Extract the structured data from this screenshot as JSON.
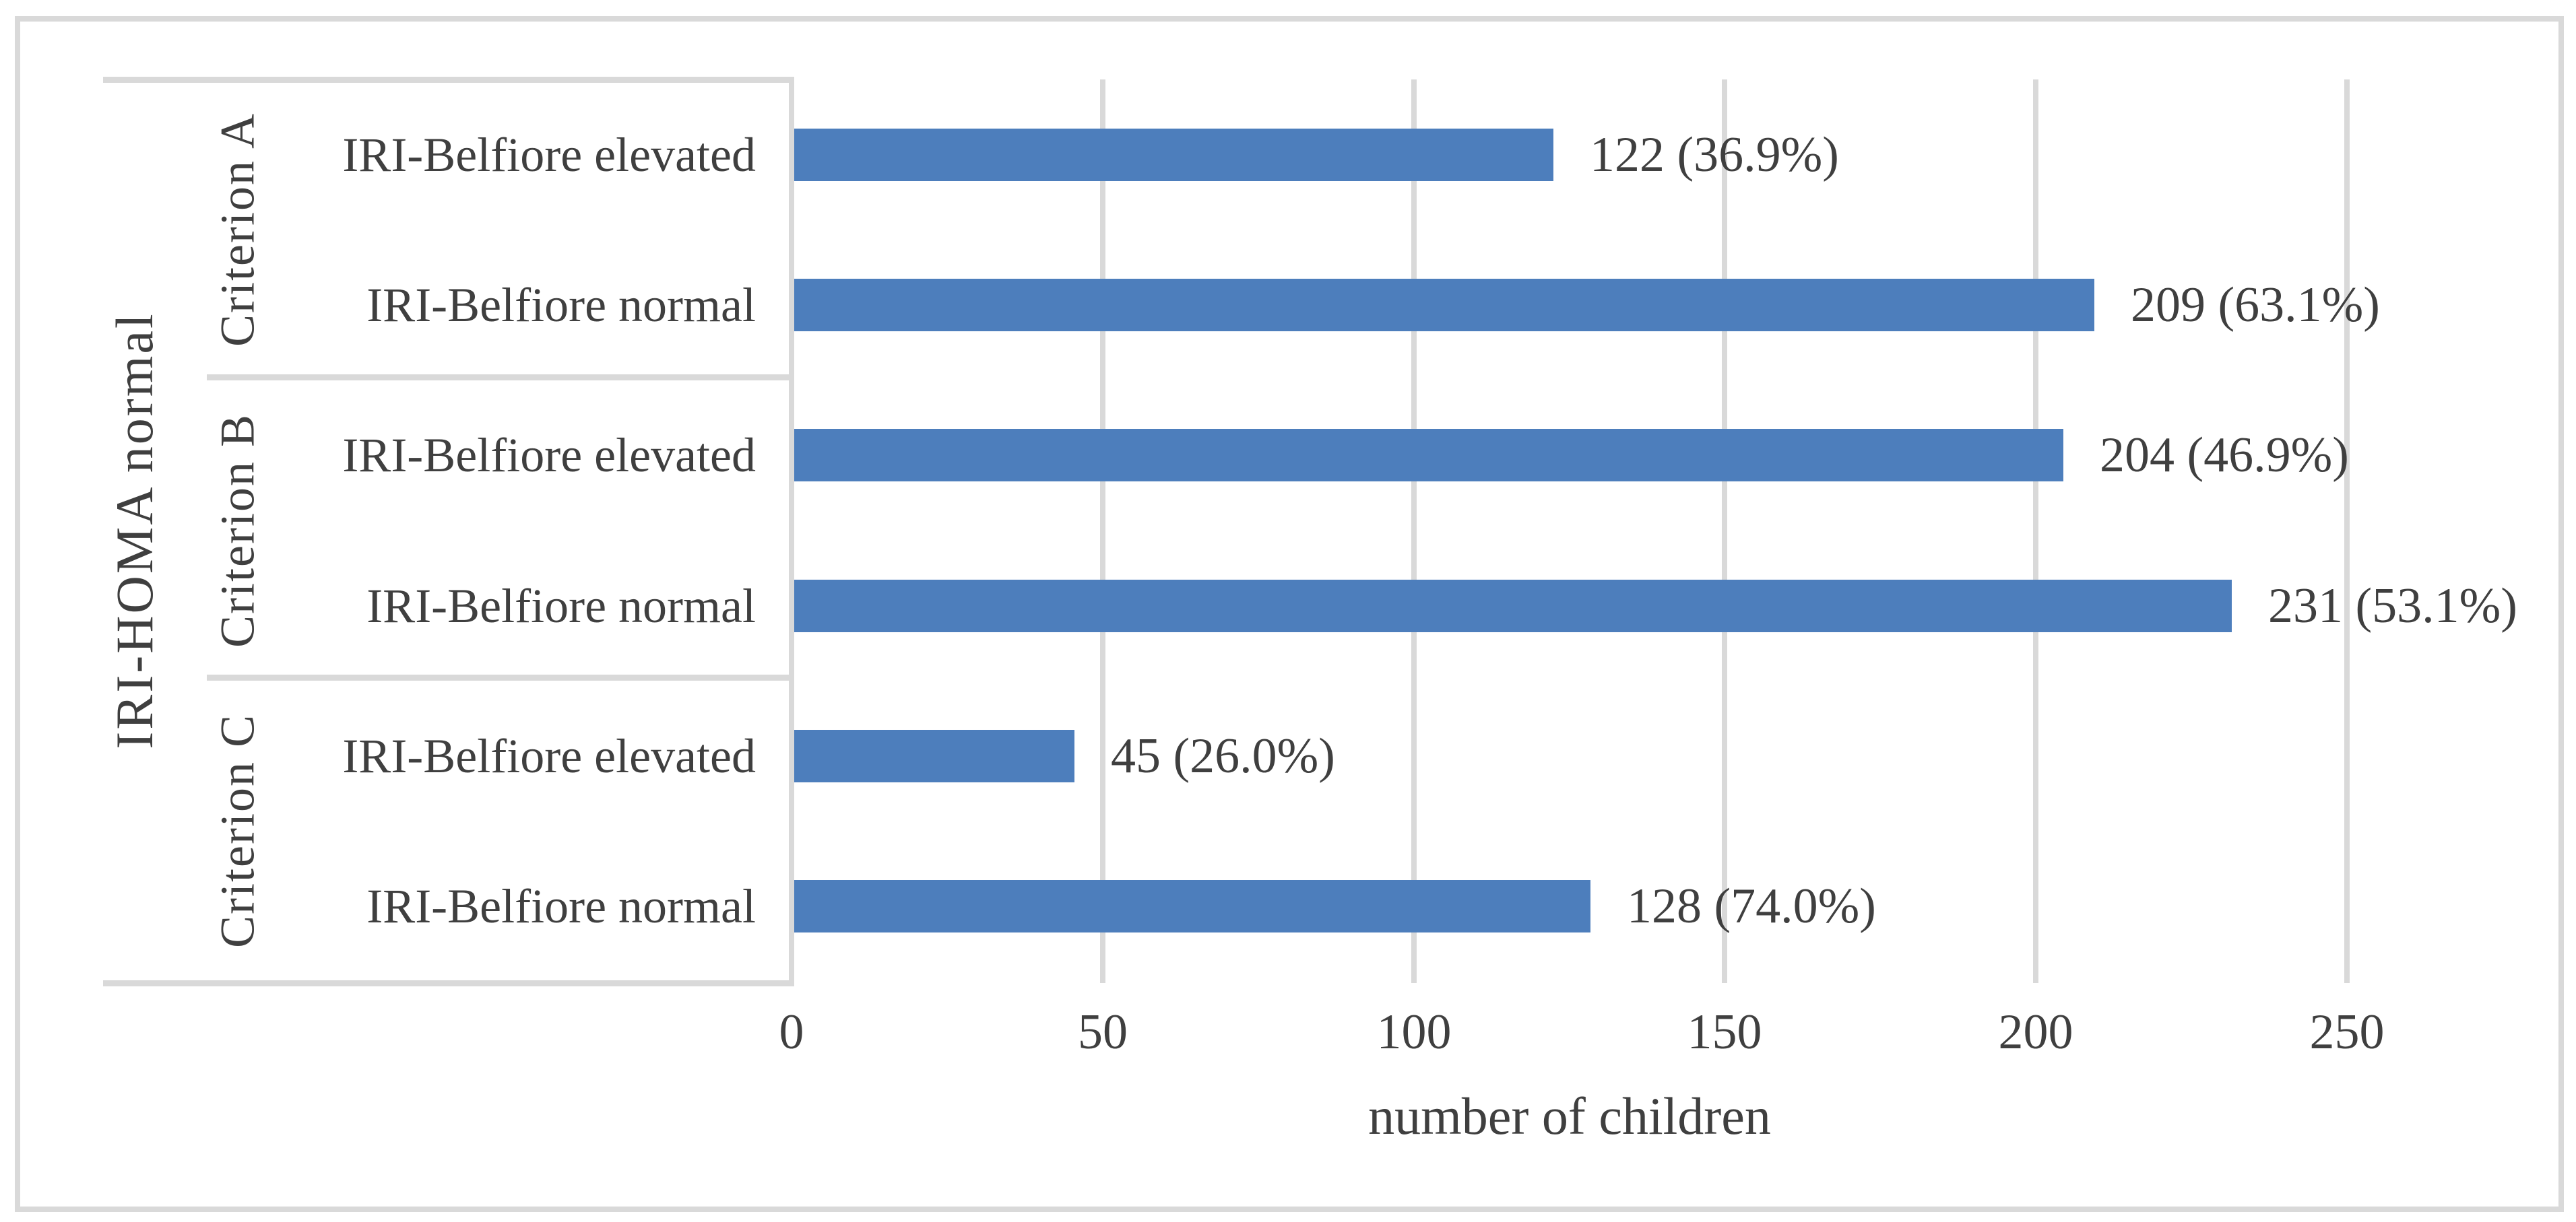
{
  "colors": {
    "bar": "#4d7ebc",
    "grid": "#d9d9d9",
    "text": "#3f3f3f",
    "background": "#ffffff"
  },
  "chart_data": {
    "type": "bar",
    "orientation": "horizontal",
    "xlabel": "number of children",
    "outer_category_label": "IRI-HOMA normal",
    "xlim": [
      0,
      250
    ],
    "x_ticks": [
      0,
      50,
      100,
      150,
      200,
      250
    ],
    "x_tick_labels": [
      "0",
      "50",
      "100",
      "150",
      "200",
      "250"
    ],
    "grid": true,
    "legend": "none",
    "groups": [
      {
        "label": "Criterion A",
        "bars": [
          {
            "category": "IRI-Belfiore elevated",
            "value": 122,
            "percent": 36.9,
            "annotation": "122 (36.9%)"
          },
          {
            "category": "IRI-Belfiore normal",
            "value": 209,
            "percent": 63.1,
            "annotation": "209 (63.1%)"
          }
        ]
      },
      {
        "label": "Criterion B",
        "bars": [
          {
            "category": "IRI-Belfiore elevated",
            "value": 204,
            "percent": 46.9,
            "annotation": "204 (46.9%)"
          },
          {
            "category": "IRI-Belfiore normal",
            "value": 231,
            "percent": 53.1,
            "annotation": "231 (53.1%)"
          }
        ]
      },
      {
        "label": "Criterion C",
        "bars": [
          {
            "category": "IRI-Belfiore elevated",
            "value": 45,
            "percent": 26.0,
            "annotation": "45 (26.0%)"
          },
          {
            "category": "IRI-Belfiore normal",
            "value": 128,
            "percent": 74.0,
            "annotation": "128 (74.0%)"
          }
        ]
      }
    ]
  }
}
